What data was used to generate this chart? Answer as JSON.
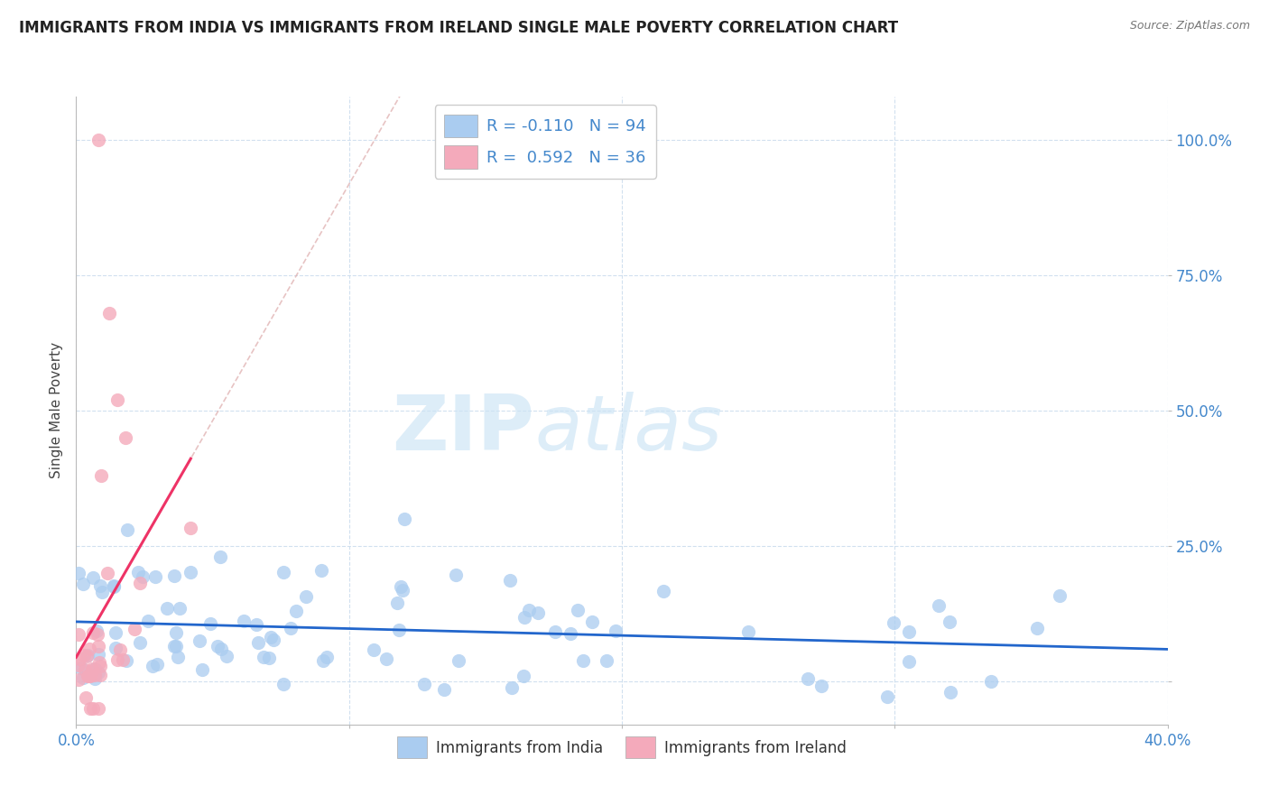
{
  "title": "IMMIGRANTS FROM INDIA VS IMMIGRANTS FROM IRELAND SINGLE MALE POVERTY CORRELATION CHART",
  "source": "Source: ZipAtlas.com",
  "ylabel": "Single Male Poverty",
  "ytick_labels": [
    "",
    "25.0%",
    "50.0%",
    "75.0%",
    "100.0%"
  ],
  "ytick_vals": [
    0.0,
    0.25,
    0.5,
    0.75,
    1.0
  ],
  "india_R": -0.11,
  "india_N": 94,
  "ireland_R": 0.592,
  "ireland_N": 36,
  "india_color": "#aaccf0",
  "ireland_color": "#f4aabb",
  "india_line_color": "#2266cc",
  "ireland_line_color": "#ee3366",
  "ireland_dash_color": "#ddaaaa",
  "background_color": "#ffffff",
  "title_fontsize": 12,
  "xlim": [
    0,
    0.4
  ],
  "ylim": [
    -0.08,
    1.08
  ]
}
